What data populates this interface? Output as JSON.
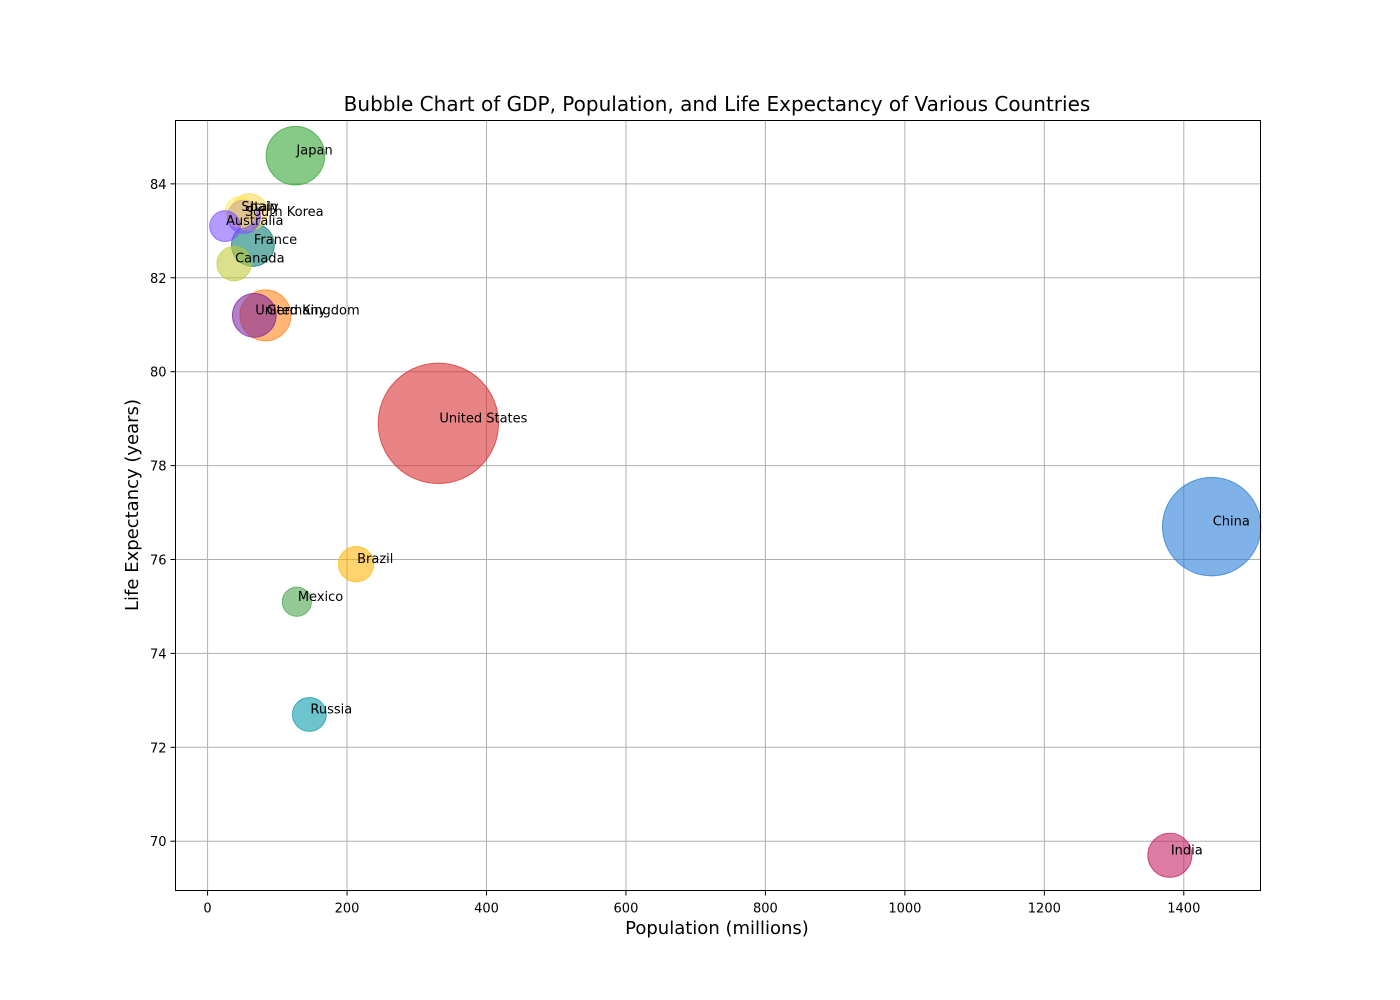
{
  "chart_data": {
    "type": "scatter",
    "title": "Bubble Chart of GDP, Population, and Life Expectancy of Various Countries",
    "xlabel": "Population (millions)",
    "ylabel": "Life Expectancy (years)",
    "xlim": [
      -46,
      1510
    ],
    "ylim": [
      68.95,
      85.35
    ],
    "x_ticks": [
      0,
      200,
      400,
      600,
      800,
      1000,
      1200,
      1400
    ],
    "y_ticks": [
      70,
      72,
      74,
      76,
      78,
      80,
      82,
      84
    ],
    "grid": true,
    "points": [
      {
        "label": "United States",
        "population": 331,
        "life_expectancy": 78.9,
        "gdp": 21.43,
        "color": "#d62728"
      },
      {
        "label": "China",
        "population": 1440,
        "life_expectancy": 76.7,
        "gdp": 14.34,
        "color": "#1f77d4"
      },
      {
        "label": "Japan",
        "population": 126,
        "life_expectancy": 84.6,
        "gdp": 5.08,
        "color": "#2ca02c"
      },
      {
        "label": "Germany",
        "population": 83,
        "life_expectancy": 81.2,
        "gdp": 3.85,
        "color": "#ff7f0e"
      },
      {
        "label": "India",
        "population": 1380,
        "life_expectancy": 69.7,
        "gdp": 2.87,
        "color": "#c2185b"
      },
      {
        "label": "United Kingdom",
        "population": 67,
        "life_expectancy": 81.2,
        "gdp": 2.83,
        "color": "#7b1fa2"
      },
      {
        "label": "France",
        "population": 65,
        "life_expectancy": 82.7,
        "gdp": 2.72,
        "color": "#00796b"
      },
      {
        "label": "Italy",
        "population": 60,
        "life_expectancy": 83.4,
        "gdp": 2.0,
        "color": "#ffd54f"
      },
      {
        "label": "Brazil",
        "population": 213,
        "life_expectancy": 75.9,
        "gdp": 1.84,
        "color": "#ffb300"
      },
      {
        "label": "Canada",
        "population": 38,
        "life_expectancy": 82.3,
        "gdp": 1.74,
        "color": "#c0ca33"
      },
      {
        "label": "Russia",
        "population": 146,
        "life_expectancy": 72.7,
        "gdp": 1.7,
        "color": "#0097a7"
      },
      {
        "label": "South Korea",
        "population": 52,
        "life_expectancy": 83.3,
        "gdp": 1.63,
        "color": "#7c4dff"
      },
      {
        "label": "Spain",
        "population": 47,
        "life_expectancy": 83.4,
        "gdp": 1.39,
        "color": "#ffee58"
      },
      {
        "label": "Australia",
        "population": 25,
        "life_expectancy": 83.1,
        "gdp": 1.39,
        "color": "#7c4dff"
      },
      {
        "label": "Mexico",
        "population": 128,
        "life_expectancy": 75.1,
        "gdp": 1.26,
        "color": "#43a047"
      }
    ]
  }
}
